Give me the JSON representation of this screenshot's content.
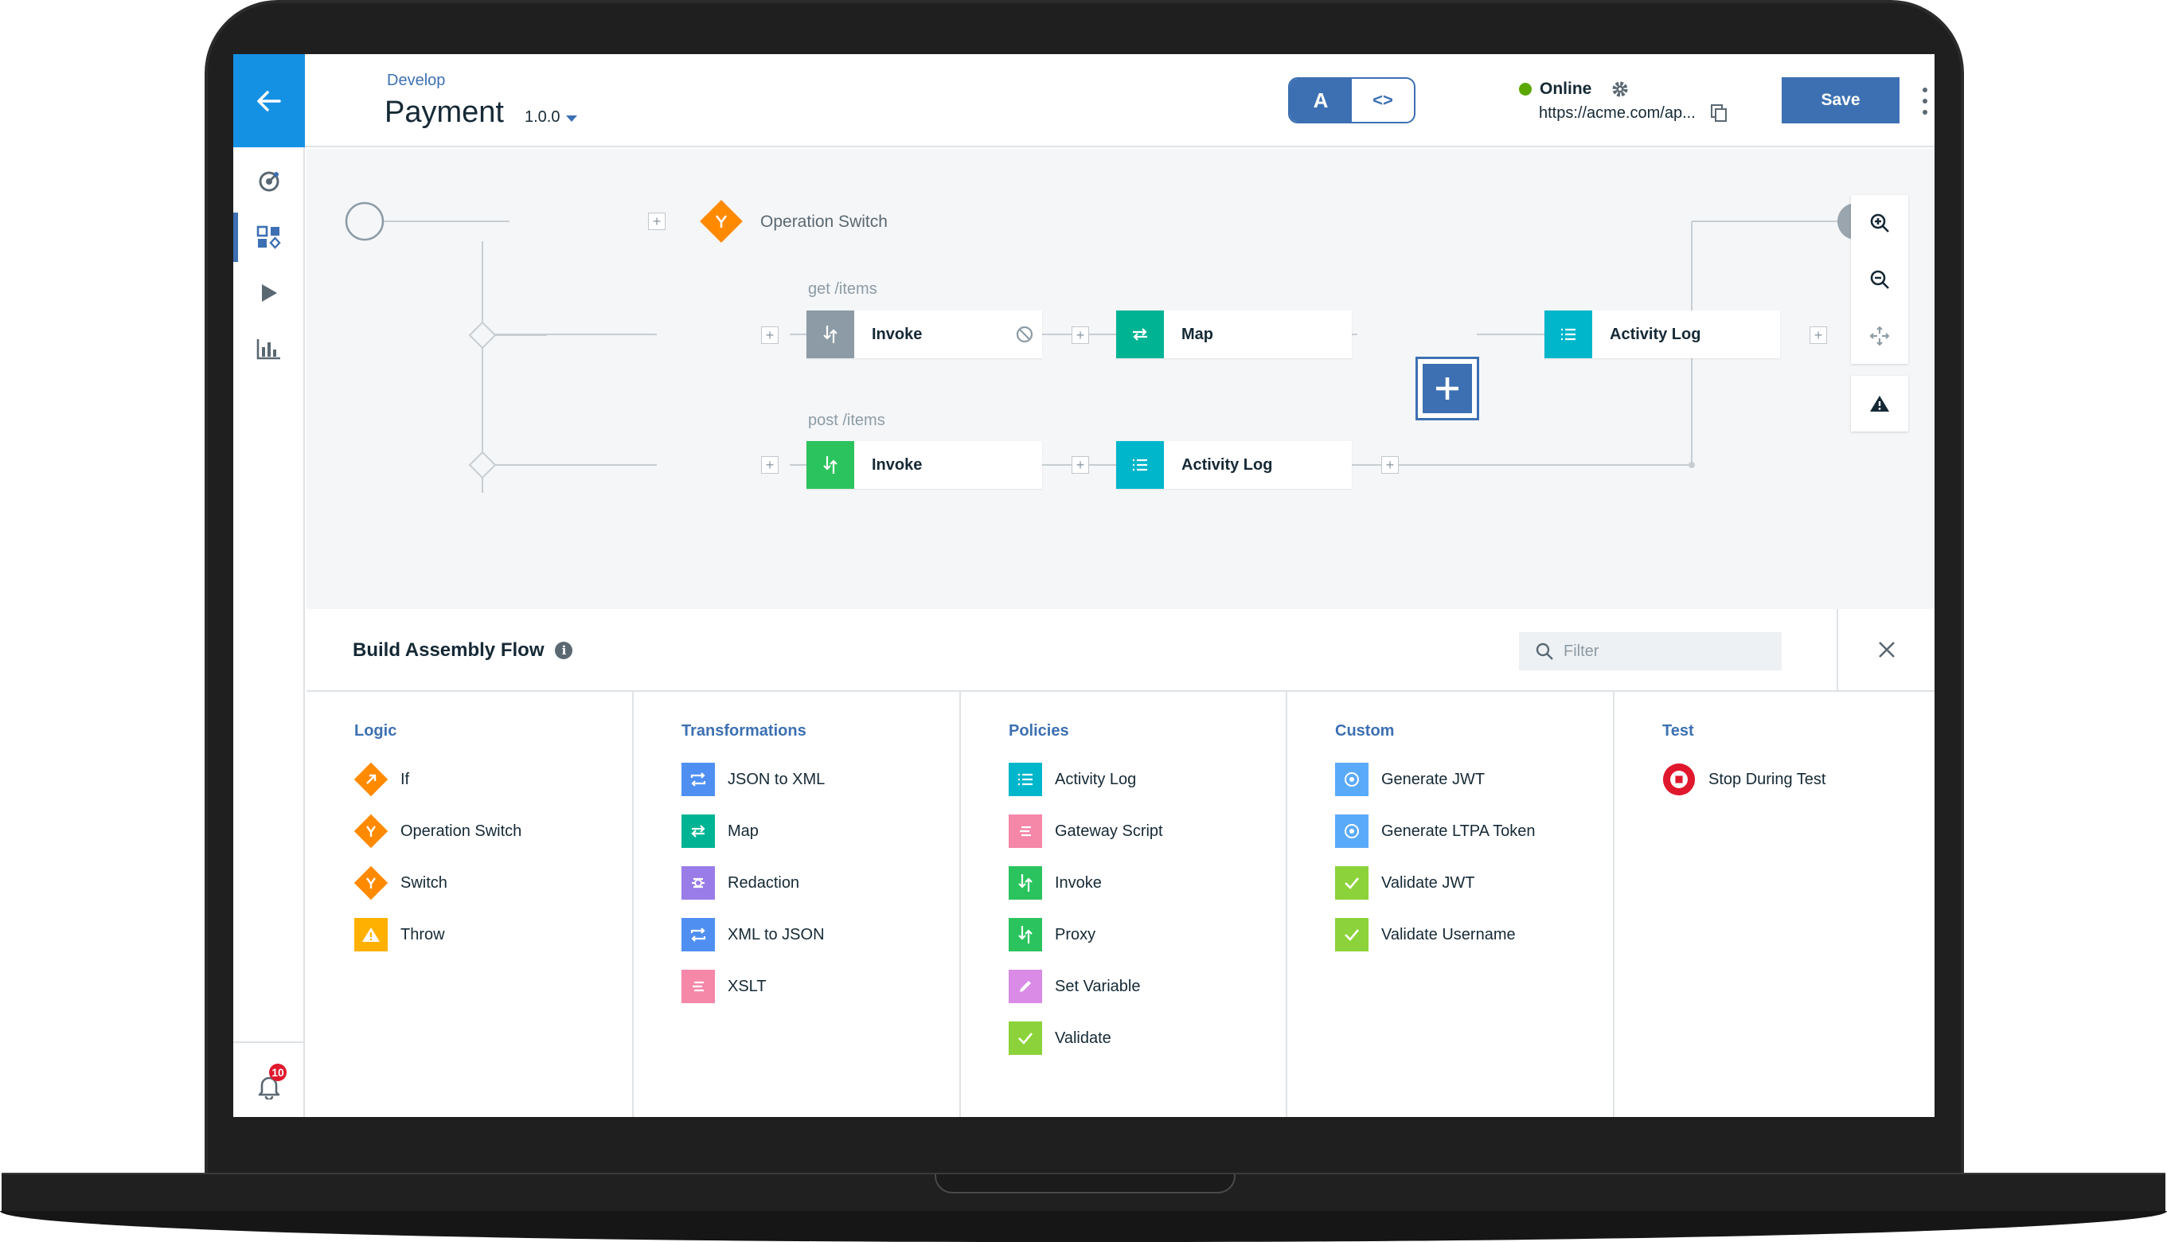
{
  "header": {
    "breadcrumb": "Develop",
    "title": "Payment",
    "version": "1.0.0",
    "toggle_left": "A",
    "toggle_right": "<>",
    "status": "Online",
    "url": "https://acme.com/ap...",
    "save_label": "Save"
  },
  "rail": {
    "notification_count": "10"
  },
  "canvas": {
    "operation_switch_label": "Operation Switch",
    "branch1_label": "get /items",
    "branch2_label": "post /items",
    "nodes": {
      "invoke1": "Invoke",
      "map1": "Map",
      "activity1": "Activity Log",
      "invoke2": "Invoke",
      "activity2": "Activity Log"
    }
  },
  "palette": {
    "title": "Build Assembly Flow",
    "filter_placeholder": "Filter",
    "columns": [
      {
        "title": "Logic",
        "items": [
          "If",
          "Operation Switch",
          "Switch",
          "Throw"
        ]
      },
      {
        "title": "Transformations",
        "items": [
          "JSON to XML",
          "Map",
          "Redaction",
          "XML to JSON",
          "XSLT"
        ]
      },
      {
        "title": "Policies",
        "items": [
          "Activity Log",
          "Gateway Script",
          "Invoke",
          "Proxy",
          "Set Variable",
          "Validate"
        ]
      },
      {
        "title": "Custom",
        "items": [
          "Generate JWT",
          "Generate LTPA Token",
          "Validate JWT",
          "Validate Username"
        ]
      },
      {
        "title": "Test",
        "items": [
          "Stop During Test"
        ]
      }
    ]
  },
  "colors": {
    "primary": "#3d70b2",
    "accent_blue": "#1591e4",
    "orange": "#ff8a00",
    "green": "#2bc35d",
    "teal": "#00b6cb",
    "online": "#5aa700"
  }
}
